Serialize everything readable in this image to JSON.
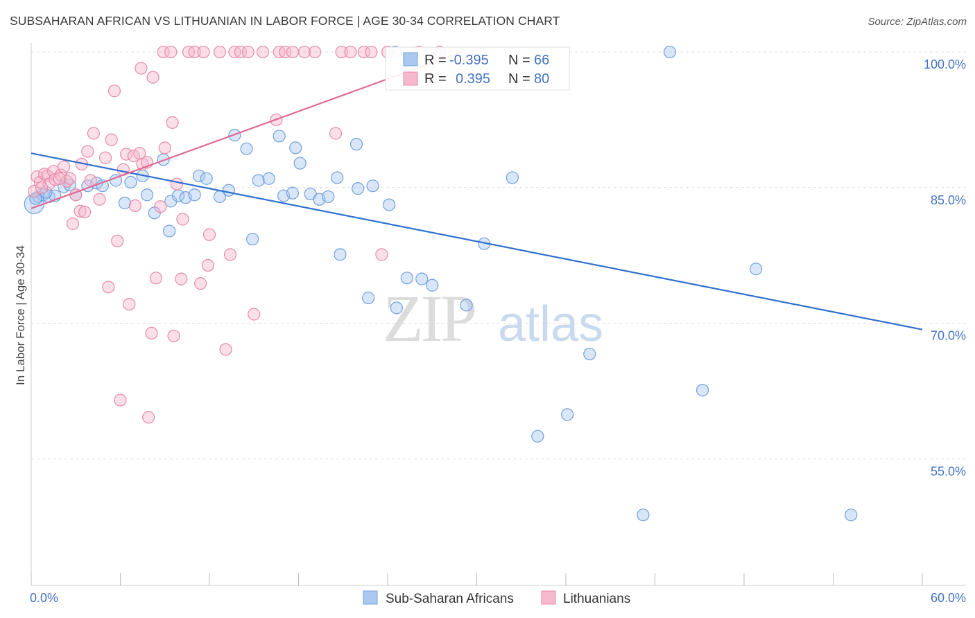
{
  "title": "SUBSAHARAN AFRICAN VS LITHUANIAN IN LABOR FORCE | AGE 30-34 CORRELATION CHART",
  "source": "Source: ZipAtlas.com",
  "watermark": {
    "zip": "ZIP",
    "atlas": "atlas"
  },
  "chart_data": {
    "type": "scatter",
    "ylabel": "In Labor Force | Age 30-34",
    "xlim": [
      0,
      60
    ],
    "ylim": [
      41,
      101
    ],
    "x_tick_labels": [
      "0.0%",
      "60.0%"
    ],
    "y_ticks": [
      {
        "value": 100,
        "label": "100.0%"
      },
      {
        "value": 85,
        "label": "85.0%"
      },
      {
        "value": 70,
        "label": "70.0%"
      },
      {
        "value": 55,
        "label": "55.0%"
      }
    ],
    "legend": {
      "r_label": "R =",
      "n_label": "N =",
      "entries": [
        {
          "r": "-0.395",
          "n": "66"
        },
        {
          "r": "0.395",
          "n": "80"
        }
      ]
    },
    "series": [
      {
        "name": "Sub-Saharan Africans",
        "color": "#aac8f0",
        "stroke": "#6fa0e0",
        "line_color": "#2f6fd0",
        "trend": {
          "x0": 0,
          "y0": 88.8,
          "x1": 60,
          "y1": 69.3
        },
        "points": [
          [
            0.2,
            83.2
          ],
          [
            0.5,
            84.0
          ],
          [
            0.8,
            84.2
          ],
          [
            1.2,
            84.0
          ],
          [
            1.6,
            84.1
          ],
          [
            2.2,
            85.1
          ],
          [
            2.6,
            85.3
          ],
          [
            3.0,
            84.2
          ],
          [
            3.8,
            85.2
          ],
          [
            4.4,
            85.5
          ],
          [
            4.8,
            85.2
          ],
          [
            5.7,
            85.8
          ],
          [
            6.3,
            83.3
          ],
          [
            6.7,
            85.6
          ],
          [
            7.5,
            86.3
          ],
          [
            7.8,
            84.2
          ],
          [
            8.3,
            82.2
          ],
          [
            8.9,
            88.1
          ],
          [
            9.3,
            80.2
          ],
          [
            9.4,
            83.5
          ],
          [
            9.9,
            84.1
          ],
          [
            10.4,
            83.9
          ],
          [
            11.0,
            84.2
          ],
          [
            11.3,
            86.3
          ],
          [
            11.8,
            86.0
          ],
          [
            12.7,
            84.0
          ],
          [
            13.3,
            84.7
          ],
          [
            13.7,
            90.8
          ],
          [
            14.5,
            89.3
          ],
          [
            14.9,
            79.3
          ],
          [
            15.3,
            85.8
          ],
          [
            16.0,
            86.0
          ],
          [
            16.7,
            90.7
          ],
          [
            17.0,
            84.1
          ],
          [
            17.6,
            84.4
          ],
          [
            17.8,
            89.4
          ],
          [
            18.1,
            87.7
          ],
          [
            18.8,
            84.3
          ],
          [
            19.4,
            83.7
          ],
          [
            20.0,
            84.0
          ],
          [
            20.6,
            86.1
          ],
          [
            20.8,
            77.6
          ],
          [
            21.9,
            89.8
          ],
          [
            22.0,
            84.9
          ],
          [
            22.7,
            72.8
          ],
          [
            23.0,
            85.2
          ],
          [
            24.1,
            83.1
          ],
          [
            24.5,
            100.0
          ],
          [
            24.6,
            71.7
          ],
          [
            25.3,
            75.0
          ],
          [
            26.3,
            74.9
          ],
          [
            27.0,
            74.2
          ],
          [
            27.5,
            100.0
          ],
          [
            29.3,
            72.0
          ],
          [
            30.5,
            78.8
          ],
          [
            32.4,
            86.1
          ],
          [
            34.1,
            57.5
          ],
          [
            36.1,
            59.9
          ],
          [
            37.6,
            66.6
          ],
          [
            41.2,
            48.8
          ],
          [
            43.0,
            100.0
          ],
          [
            45.2,
            62.6
          ],
          [
            48.8,
            76.0
          ],
          [
            55.2,
            48.8
          ],
          [
            0.3,
            83.8
          ],
          [
            1.0,
            84.5
          ]
        ]
      },
      {
        "name": "Lithuanians",
        "color": "#f5b8cc",
        "stroke": "#e88aa8",
        "line_color": "#e06a95",
        "trend": {
          "x0": 0,
          "y0": 82.7,
          "x1": 29.0,
          "y1": 100.0
        },
        "points": [
          [
            0.2,
            84.6
          ],
          [
            0.4,
            86.2
          ],
          [
            0.6,
            85.6
          ],
          [
            0.9,
            86.5
          ],
          [
            1.1,
            86.3
          ],
          [
            1.2,
            85.4
          ],
          [
            1.5,
            86.8
          ],
          [
            1.6,
            85.9
          ],
          [
            2.0,
            86.4
          ],
          [
            2.2,
            87.3
          ],
          [
            2.4,
            85.7
          ],
          [
            2.6,
            86.0
          ],
          [
            2.8,
            81.0
          ],
          [
            3.0,
            84.2
          ],
          [
            3.3,
            82.4
          ],
          [
            3.4,
            87.6
          ],
          [
            3.6,
            82.3
          ],
          [
            3.8,
            89.0
          ],
          [
            4.0,
            85.8
          ],
          [
            4.2,
            91.0
          ],
          [
            4.6,
            83.7
          ],
          [
            5.0,
            88.3
          ],
          [
            5.2,
            74.0
          ],
          [
            5.4,
            90.3
          ],
          [
            5.6,
            95.7
          ],
          [
            5.8,
            79.1
          ],
          [
            6.0,
            61.5
          ],
          [
            6.2,
            87.0
          ],
          [
            6.4,
            88.7
          ],
          [
            6.6,
            72.1
          ],
          [
            6.9,
            88.5
          ],
          [
            7.0,
            83.0
          ],
          [
            7.3,
            88.8
          ],
          [
            7.4,
            98.2
          ],
          [
            7.5,
            87.6
          ],
          [
            7.8,
            87.8
          ],
          [
            7.9,
            59.6
          ],
          [
            8.1,
            68.9
          ],
          [
            8.2,
            97.2
          ],
          [
            8.4,
            75.0
          ],
          [
            8.7,
            82.9
          ],
          [
            8.9,
            100.0
          ],
          [
            9.0,
            89.4
          ],
          [
            9.4,
            100.0
          ],
          [
            9.5,
            92.2
          ],
          [
            9.6,
            68.6
          ],
          [
            9.8,
            85.4
          ],
          [
            10.1,
            74.9
          ],
          [
            10.2,
            81.5
          ],
          [
            10.6,
            100.0
          ],
          [
            11.0,
            100.0
          ],
          [
            11.4,
            74.4
          ],
          [
            11.6,
            100.0
          ],
          [
            11.9,
            76.4
          ],
          [
            12.0,
            79.8
          ],
          [
            12.7,
            100.0
          ],
          [
            13.1,
            67.1
          ],
          [
            13.4,
            77.6
          ],
          [
            13.7,
            100.0
          ],
          [
            14.1,
            100.0
          ],
          [
            14.6,
            100.0
          ],
          [
            15.6,
            100.0
          ],
          [
            16.5,
            92.5
          ],
          [
            16.7,
            100.0
          ],
          [
            17.1,
            100.0
          ],
          [
            17.6,
            100.0
          ],
          [
            18.4,
            100.0
          ],
          [
            19.1,
            100.0
          ],
          [
            20.5,
            91.0
          ],
          [
            20.9,
            100.0
          ],
          [
            21.5,
            100.0
          ],
          [
            22.4,
            100.0
          ],
          [
            22.9,
            100.0
          ],
          [
            23.6,
            77.6
          ],
          [
            24.0,
            100.0
          ],
          [
            26.1,
            100.0
          ],
          [
            27.5,
            100.0
          ],
          [
            15.0,
            71.0
          ],
          [
            1.9,
            86.0
          ],
          [
            0.7,
            85.0
          ]
        ]
      }
    ]
  }
}
